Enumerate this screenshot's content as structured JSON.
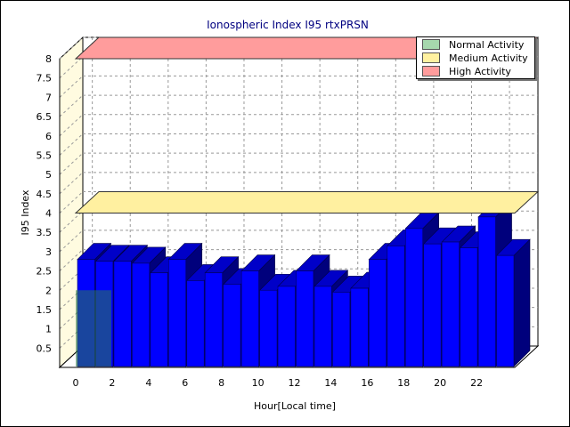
{
  "chart_data": {
    "type": "bar",
    "title": "Ionospheric Index I95 rtxPRSN",
    "xlabel": "Hour[Local time]",
    "ylabel": "I95 Index",
    "ylim": [
      0,
      8
    ],
    "yticks": [
      "0.5",
      "1",
      "1.5",
      "2",
      "2.5",
      "3",
      "3.5",
      "4",
      "4.5",
      "5",
      "5.5",
      "6",
      "6.5",
      "7",
      "7.5",
      "8"
    ],
    "xticks": [
      "0",
      "2",
      "4",
      "6",
      "8",
      "10",
      "12",
      "14",
      "16",
      "18",
      "20",
      "22"
    ],
    "categories": [
      "0",
      "1",
      "2",
      "3",
      "4",
      "5",
      "6",
      "7",
      "8",
      "9",
      "10",
      "11",
      "12",
      "13",
      "14",
      "15",
      "16",
      "17",
      "18",
      "19",
      "20",
      "21",
      "22",
      "23"
    ],
    "values": [
      2.8,
      2.75,
      2.75,
      2.7,
      2.45,
      2.8,
      2.25,
      2.45,
      2.15,
      2.5,
      2.0,
      2.1,
      2.5,
      2.1,
      1.95,
      2.05,
      2.8,
      3.15,
      3.6,
      3.2,
      3.25,
      3.1,
      3.9,
      2.9
    ],
    "bands": [
      {
        "name": "Normal Activity",
        "from": 0,
        "to": 2,
        "color": "#2e7d4f"
      },
      {
        "name": "Medium Activity",
        "from": 4,
        "to": 4,
        "color": "#fff0a0"
      },
      {
        "name": "High Activity",
        "from": 8,
        "to": 8,
        "color": "#ff9c9c"
      }
    ],
    "grid": true,
    "legend_position": "top-right",
    "colors": {
      "bar_front": "#0000ff",
      "bar_top": "#0000c8",
      "bar_side": "#00007c",
      "back_wall": "#ffffff",
      "left_wall": "#fffbe0"
    }
  },
  "legend": {
    "items": [
      {
        "label": "Normal Activity",
        "color": "#a6d8ad"
      },
      {
        "label": "Medium Activity",
        "color": "#fff1a0"
      },
      {
        "label": "High Activity",
        "color": "#ff9c9c"
      }
    ]
  }
}
